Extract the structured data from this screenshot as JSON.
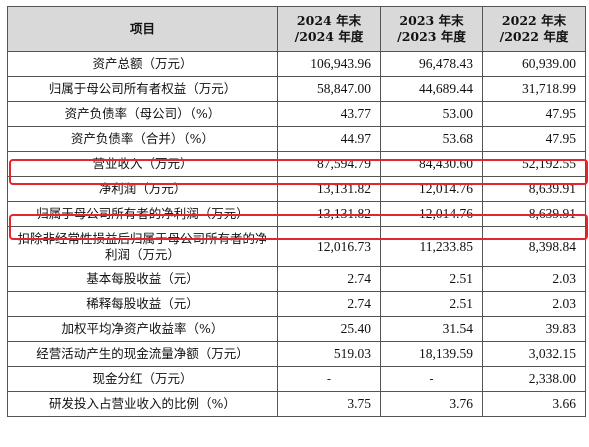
{
  "header": {
    "item": "项目",
    "col_2024": "2024 年末\n/2024 年度",
    "col_2023": "2023 年末\n/2023 年度",
    "col_2022": "2022 年末\n/2022 年度"
  },
  "rows": [
    {
      "label": "资产总额（万元）",
      "v2024": "106,943.96",
      "v2023": "96,478.43",
      "v2022": "60,939.00"
    },
    {
      "label": "归属于母公司所有者权益（万元）",
      "v2024": "58,847.00",
      "v2023": "44,689.44",
      "v2022": "31,718.99"
    },
    {
      "label": "资产负债率（母公司）（%）",
      "v2024": "43.77",
      "v2023": "53.00",
      "v2022": "47.95"
    },
    {
      "label": "资产负债率（合并）（%）",
      "v2024": "44.97",
      "v2023": "53.68",
      "v2022": "47.95"
    },
    {
      "label": "营业收入（万元）",
      "v2024": "87,594.79",
      "v2023": "84,430.60",
      "v2022": "52,192.55"
    },
    {
      "label": "净利润（万元）",
      "v2024": "13,131.82",
      "v2023": "12,014.76",
      "v2022": "8,639.91"
    },
    {
      "label": "归属于母公司所有者的净利润（万元）",
      "v2024": "13,131.82",
      "v2023": "12,014.76",
      "v2022": "8,639.91"
    },
    {
      "label": "扣除非经常性损益后归属于母公司所有者的净利润（万元）",
      "v2024": "12,016.73",
      "v2023": "11,233.85",
      "v2022": "8,398.84"
    },
    {
      "label": "基本每股收益（元）",
      "v2024": "2.74",
      "v2023": "2.51",
      "v2022": "2.03"
    },
    {
      "label": "稀释每股收益（元）",
      "v2024": "2.74",
      "v2023": "2.51",
      "v2022": "2.03"
    },
    {
      "label": "加权平均净资产收益率（%）",
      "v2024": "25.40",
      "v2023": "31.54",
      "v2022": "39.83"
    },
    {
      "label": "经营活动产生的现金流量净额（万元）",
      "v2024": "519.03",
      "v2023": "18,139.59",
      "v2022": "3,032.15"
    },
    {
      "label": "现金分红（万元）",
      "v2024": "-",
      "v2023": "-",
      "v2022": "2,338.00"
    },
    {
      "label": "研发投入占营业收入的比例（%）",
      "v2024": "3.75",
      "v2023": "3.76",
      "v2022": "3.66"
    }
  ],
  "highlight_color": "#e3262d",
  "header_bg": "#d9d9d9"
}
